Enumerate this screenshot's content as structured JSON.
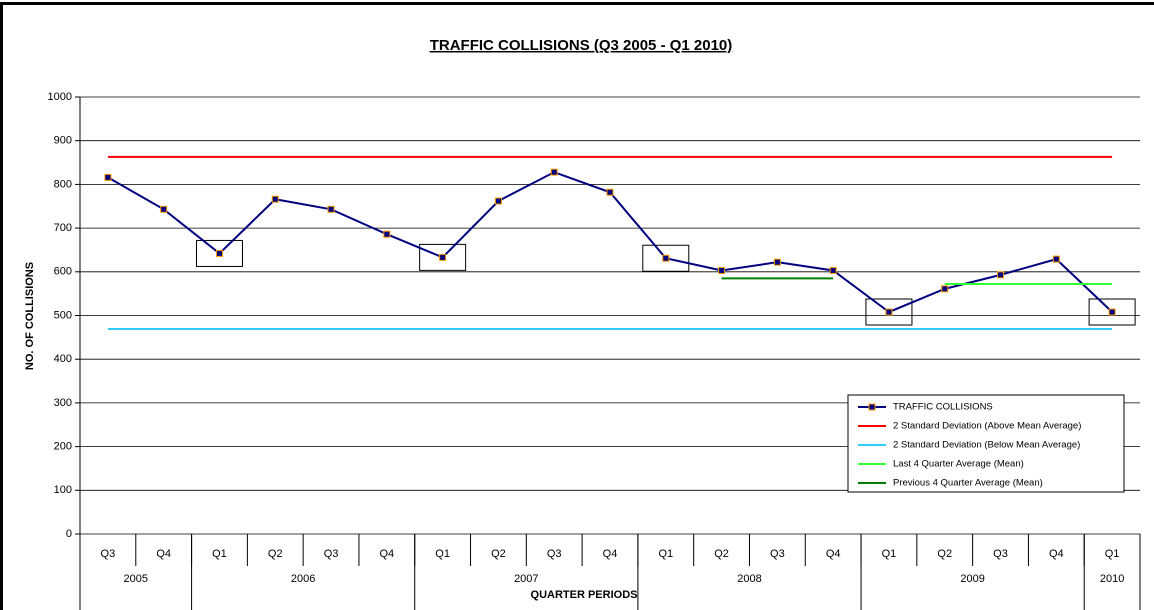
{
  "chart_data": {
    "type": "line",
    "title": "TRAFFIC COLLISIONS (Q3 2005 - Q1 2010)",
    "x_label": "QUARTER PERIODS",
    "y_label": "NO. OF  COLLISIONS",
    "categories": [
      "Q3",
      "Q4",
      "Q1",
      "Q2",
      "Q3",
      "Q4",
      "Q1",
      "Q2",
      "Q3",
      "Q4",
      "Q1",
      "Q2",
      "Q3",
      "Q4",
      "Q1",
      "Q2",
      "Q3",
      "Q4",
      "Q1"
    ],
    "category_groups": [
      {
        "label": "2005",
        "count": 2
      },
      {
        "label": "2006",
        "count": 4
      },
      {
        "label": "2007",
        "count": 4
      },
      {
        "label": "2008",
        "count": 4
      },
      {
        "label": "2009",
        "count": 4
      },
      {
        "label": "2010",
        "count": 1
      }
    ],
    "series": [
      {
        "name": "TRAFFIC COLLISIONS",
        "color": "#000080",
        "marker_edge": "#ff9900",
        "marker": true,
        "values": [
          816,
          743,
          642,
          766,
          743,
          686,
          633,
          762,
          828,
          782,
          631,
          603,
          622,
          603,
          508,
          561,
          593,
          629,
          508
        ]
      },
      {
        "name": "2 Standard Deviation (Above Mean Average)",
        "color": "#ff0000",
        "values": [
          863,
          863,
          863,
          863,
          863,
          863,
          863,
          863,
          863,
          863,
          863,
          863,
          863,
          863,
          863,
          863,
          863,
          863,
          863
        ]
      },
      {
        "name": "2 Standard Deviation (Below Mean Average)",
        "color": "#33ccff",
        "values": [
          469,
          469,
          469,
          469,
          469,
          469,
          469,
          469,
          469,
          469,
          469,
          469,
          469,
          469,
          469,
          469,
          469,
          469,
          469
        ]
      },
      {
        "name": "Last 4 Quarter Average (Mean)",
        "color": "#33ff33",
        "values": [
          null,
          null,
          null,
          null,
          null,
          null,
          null,
          null,
          null,
          null,
          null,
          null,
          null,
          null,
          null,
          572,
          572,
          572,
          572
        ]
      },
      {
        "name": "Previous 4 Quarter Average (Mean)",
        "color": "#008000",
        "values": [
          null,
          null,
          null,
          null,
          null,
          null,
          null,
          null,
          null,
          null,
          null,
          585,
          585,
          585,
          null,
          null,
          null,
          null,
          null
        ]
      }
    ],
    "ylim": [
      0,
      1000
    ],
    "yticks": [
      0,
      100,
      200,
      300,
      400,
      500,
      600,
      700,
      800,
      900,
      1000
    ],
    "grid": true,
    "legend": "lower right"
  }
}
